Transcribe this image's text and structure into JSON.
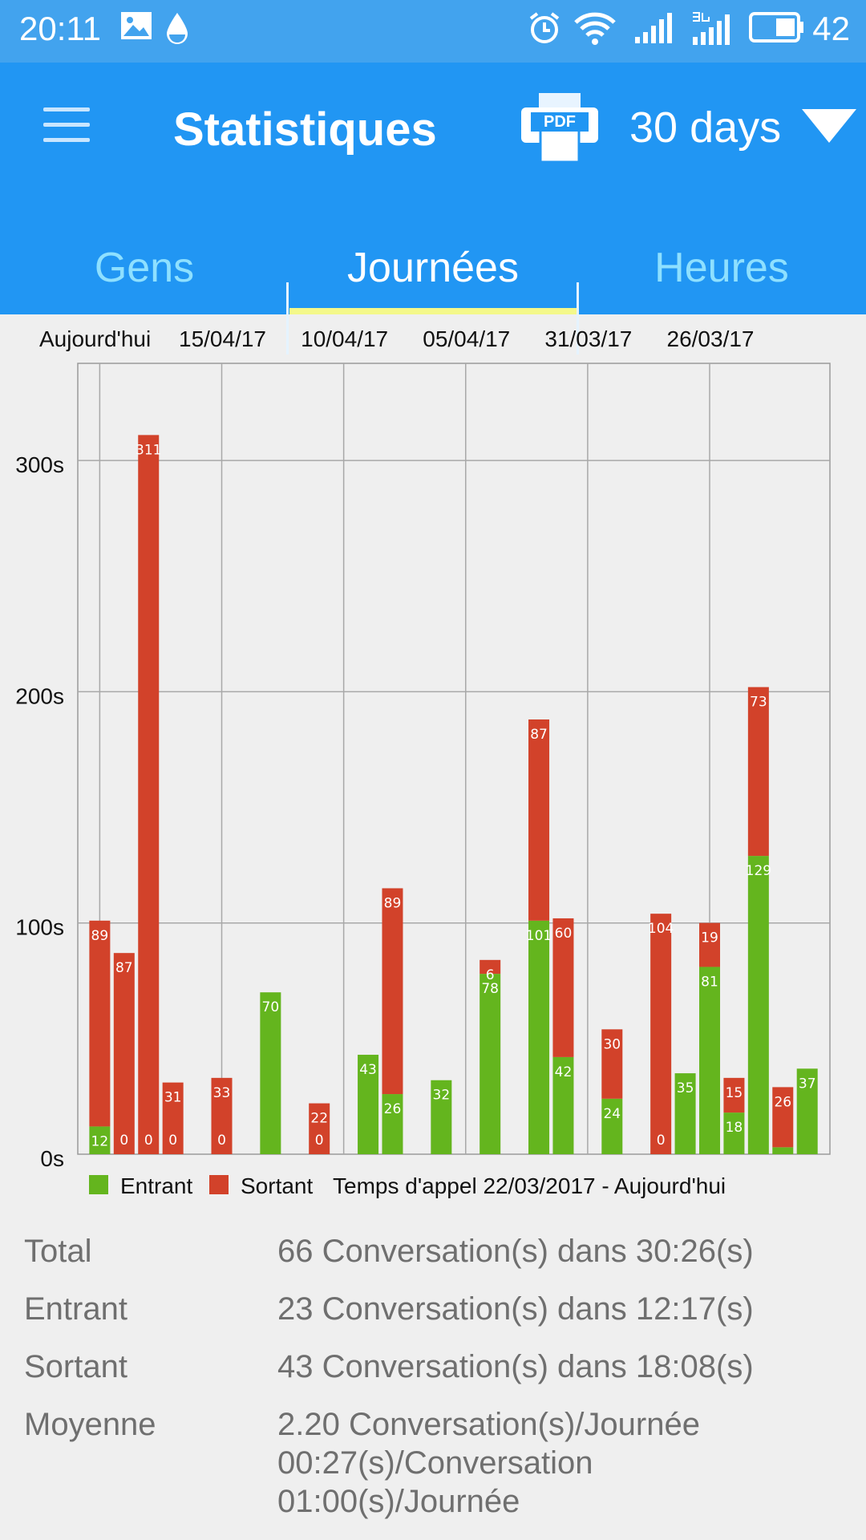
{
  "status_bar": {
    "time": "20:11",
    "battery": "42"
  },
  "app_bar": {
    "title": "Statistiques",
    "range": "30 days",
    "pdf_label": "PDF"
  },
  "tabs": [
    {
      "label": "Gens"
    },
    {
      "label": "Journées"
    },
    {
      "label": "Heures"
    }
  ],
  "colors": {
    "entrant": "#64b51e",
    "sortant": "#d2422a",
    "appbar": "#2196f3"
  },
  "chart_data": {
    "type": "bar",
    "stacked": true,
    "date_labels": [
      "Aujourd'hui",
      "15/04/17",
      "10/04/17",
      "05/04/17",
      "31/03/17",
      "26/03/17"
    ],
    "ytick_labels": [
      "0s",
      "100s",
      "200s",
      "300s"
    ],
    "yticks": [
      0,
      100,
      200,
      300
    ],
    "ylim": [
      0,
      342
    ],
    "grid": true,
    "legend_position": "bottom",
    "legend": [
      "Entrant",
      "Sortant"
    ],
    "caption": "Temps d'appel 22/03/2017 - Aujourd'hui",
    "day_index": [
      0,
      1,
      2,
      3,
      4,
      5,
      6,
      7,
      8,
      9,
      10,
      11,
      12,
      13,
      14,
      15,
      16,
      17,
      18,
      19,
      20,
      21,
      22,
      23,
      24,
      25,
      26,
      27,
      28,
      29
    ],
    "series": [
      {
        "name": "Entrant",
        "values": [
          12,
          0,
          0,
          0,
          null,
          0,
          null,
          70,
          null,
          0,
          null,
          43,
          26,
          null,
          32,
          null,
          78,
          null,
          101,
          42,
          null,
          24,
          null,
          0,
          35,
          81,
          18,
          129,
          3,
          37
        ]
      },
      {
        "name": "Sortant",
        "values": [
          89,
          87,
          311,
          31,
          null,
          33,
          null,
          null,
          null,
          22,
          null,
          null,
          89,
          null,
          null,
          null,
          6,
          null,
          87,
          60,
          null,
          30,
          null,
          104,
          null,
          19,
          15,
          73,
          26,
          null
        ]
      }
    ],
    "value_labels": [
      {
        "entrant": "12",
        "sortant": "89"
      },
      {
        "entrant": "0",
        "sortant": "87"
      },
      {
        "entrant": "0",
        "sortant": "311"
      },
      {
        "entrant": "0",
        "sortant": "31"
      },
      {
        "entrant": "",
        "sortant": ""
      },
      {
        "entrant": "0",
        "sortant": "33"
      },
      {
        "entrant": "",
        "sortant": ""
      },
      {
        "entrant": "70",
        "sortant": ""
      },
      {
        "entrant": "",
        "sortant": ""
      },
      {
        "entrant": "0",
        "sortant": "22"
      },
      {
        "entrant": "",
        "sortant": ""
      },
      {
        "entrant": "43",
        "sortant": ""
      },
      {
        "entrant": "26",
        "sortant": "89"
      },
      {
        "entrant": "",
        "sortant": ""
      },
      {
        "entrant": "32",
        "sortant": ""
      },
      {
        "entrant": "",
        "sortant": ""
      },
      {
        "entrant": "78",
        "sortant": "6"
      },
      {
        "entrant": "",
        "sortant": ""
      },
      {
        "entrant": "101",
        "sortant": "87"
      },
      {
        "entrant": "42",
        "sortant": "60"
      },
      {
        "entrant": "",
        "sortant": ""
      },
      {
        "entrant": "24",
        "sortant": "30"
      },
      {
        "entrant": "",
        "sortant": ""
      },
      {
        "entrant": "0",
        "sortant": "104"
      },
      {
        "entrant": "35",
        "sortant": ""
      },
      {
        "entrant": "81",
        "sortant": "19"
      },
      {
        "entrant": "18",
        "sortant": "15"
      },
      {
        "entrant": "129",
        "sortant": "73"
      },
      {
        "entrant": "",
        "sortant": "26"
      },
      {
        "entrant": "37",
        "sortant": ""
      }
    ]
  },
  "stats": [
    {
      "label": "Total",
      "lines": [
        "66 Conversation(s) dans 30:26(s)"
      ]
    },
    {
      "label": "Entrant",
      "lines": [
        "23 Conversation(s) dans 12:17(s)"
      ]
    },
    {
      "label": "Sortant",
      "lines": [
        "43 Conversation(s) dans 18:08(s)"
      ]
    },
    {
      "label": "Moyenne",
      "lines": [
        "2.20 Conversation(s)/Journée",
        "00:27(s)/Conversation",
        "01:00(s)/Journée"
      ]
    }
  ]
}
